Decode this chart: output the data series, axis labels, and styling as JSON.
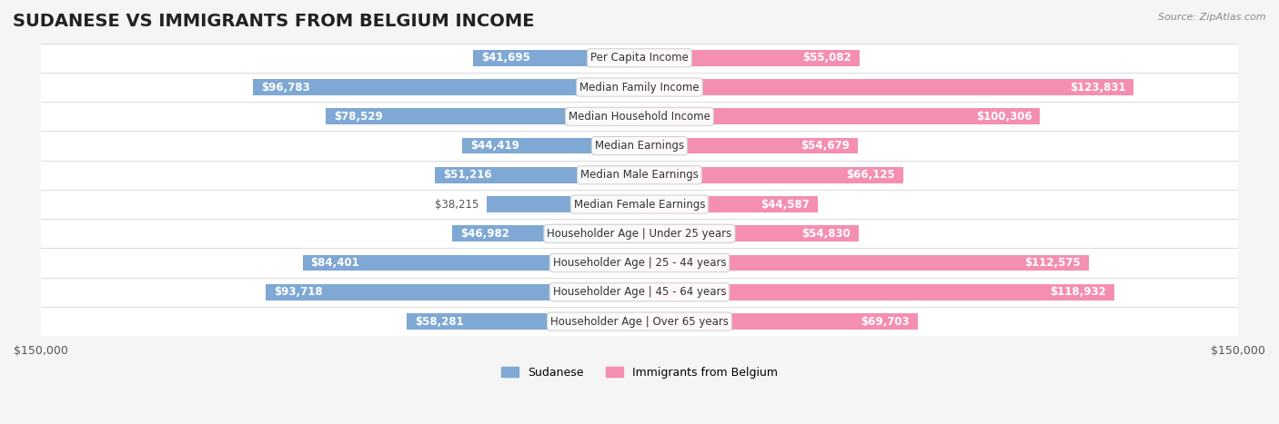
{
  "title": "SUDANESE VS IMMIGRANTS FROM BELGIUM INCOME",
  "source": "Source: ZipAtlas.com",
  "categories": [
    "Per Capita Income",
    "Median Family Income",
    "Median Household Income",
    "Median Earnings",
    "Median Male Earnings",
    "Median Female Earnings",
    "Householder Age | Under 25 years",
    "Householder Age | 25 - 44 years",
    "Householder Age | 45 - 64 years",
    "Householder Age | Over 65 years"
  ],
  "sudanese_values": [
    41695,
    96783,
    78529,
    44419,
    51216,
    38215,
    46982,
    84401,
    93718,
    58281
  ],
  "belgium_values": [
    55082,
    123831,
    100306,
    54679,
    66125,
    44587,
    54830,
    112575,
    118932,
    69703
  ],
  "sudanese_labels": [
    "$41,695",
    "$96,783",
    "$78,529",
    "$44,419",
    "$51,216",
    "$38,215",
    "$46,982",
    "$84,401",
    "$93,718",
    "$58,281"
  ],
  "belgium_labels": [
    "$55,082",
    "$123,831",
    "$100,306",
    "$54,679",
    "$66,125",
    "$44,587",
    "$54,830",
    "$112,575",
    "$118,932",
    "$69,703"
  ],
  "max_value": 150000,
  "sudanese_color": "#7fa8d4",
  "belgium_color": "#f48fb1",
  "sudanese_label_color_inside": "#5a7fa8",
  "bar_height": 0.55,
  "bg_color": "#f5f5f5",
  "row_bg_color": "#ffffff",
  "row_alt_color": "#f0f0f0",
  "legend_sudanese": "Sudanese",
  "legend_belgium": "Immigrants from Belgium",
  "title_fontsize": 14,
  "label_fontsize": 8.5,
  "category_fontsize": 8.5,
  "axis_label_fontsize": 9
}
